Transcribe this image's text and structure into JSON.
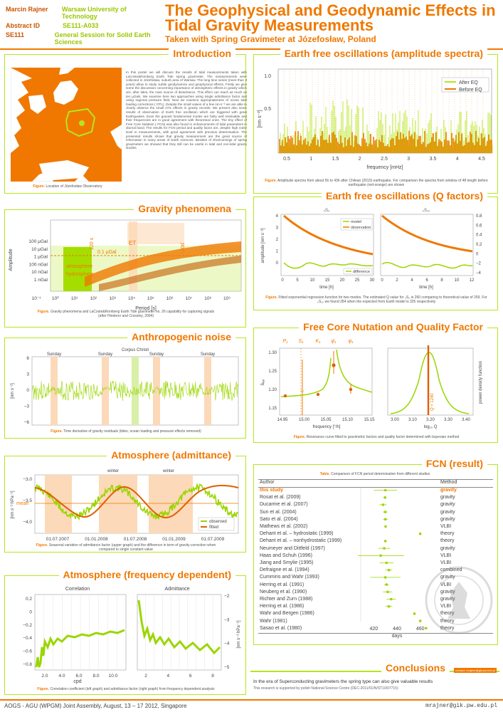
{
  "header": {
    "author_label": "Marcin Rajner",
    "affiliation": "Warsaw University of Technology",
    "abstract_label": "Abstract ID",
    "abstract_id": "SE111-A033",
    "session_code": "SE111",
    "session_name": "General Session for Solid Earth Sciences",
    "title": "The Geophysical and Geodynamic Effects in Tidal Gravity Measurements",
    "subtitle": "Taken with Spring Gravimeter at Józefosław, Poland"
  },
  "intro": {
    "title": "Introduction",
    "text": "In this poster we will discuss the results of tidal measurements taken with LaCoste&Romberg Earth Tide spring gravimeter. The measurements were collected in Józefosław, suburb area of Warsaw. The long time series (more than 3 years) allow to study subtle geodynamics and geophysical effects. Firstly we give some the discussion concerning importance of atmospheric effects in gravity which are, after tides, the main source of disturbance. This effect can reach as much as ten µGals. We examine here two approaches using single admittance factor and using regional pressure field. Next we examine appropriateness of ocean tidal loading corrections ( OTL). Despite the small values of a few nm·s⁻² we are able to clearly observe the small OTL effects in gravity records. We present also some results of observation of Earth free oscillation which are triggered with great Earthquakes. Even the gravest fundamental modes are fairly well resolvable and their frequencies are in good agreement with theoretical ones. The tiny effect of Free Core Nutation ( FCN) was also found in enhancements of tidal parameters in diurnal band. The results for FCN period and quality factor are, despite high noise level in measurements, with good agreement with previous determination. The presented results shows that gravity measurement are the great source of information in many areas of Earth sciences. Besides of shortcomings of spring gravimeters we showed that they still can be useful in tidal and non-tidal gravity studies.",
    "caption_label": "Figure.",
    "caption": "Location of Józefosław Observatory"
  },
  "spectra": {
    "title": "Earth free oscillations (amplitude spectra)",
    "ylabel": "[nm s⁻²]",
    "xlabel": "frequency [mHz]",
    "legend": [
      "After EQ",
      "Before EQ"
    ],
    "yticks": [
      "1.0",
      "0.5"
    ],
    "xticks": [
      "0.5",
      "1",
      "1.5",
      "2",
      "2.5",
      "3",
      "3.5",
      "4",
      "4.5"
    ],
    "caption_label": "Figure.",
    "caption": "Amplitude spectra from about 5h to 43h after Chilean (2010) earthquake. For comparison the spectra from window of 48 length before earthquake (red-orange) are shown"
  },
  "gravity": {
    "title": "Gravity phenomena",
    "ylabel": "Amplitude",
    "xlabel": "Period [s]",
    "yticks": [
      "100 µGal",
      "10 µGal",
      "1 µGal",
      "100 nGal",
      "10 nGal",
      "1 nGal"
    ],
    "xticks": [
      "10⁻¹",
      "10⁰",
      "10¹",
      "10²",
      "10³",
      "10⁴",
      "10⁵",
      "10⁶",
      "10⁷",
      "10⁸",
      "10⁹"
    ],
    "labels": {
      "resolution": "0.1 µGal",
      "et": "ET",
      "s120": "120 s",
      "d20": "~20d",
      "atmo": "atmosphere",
      "hydro": "hydrosphere"
    },
    "caption_label": "Figure.",
    "caption": "Gravity phenomena and LaCoste&Romberg Earth Tide gravimeter no. 26 capability for capturing signals (after Hinderer and Crossley, 2004)"
  },
  "qfactor": {
    "title": "Earth free oscillations (Q factors)",
    "left_title": "₀S₀",
    "right_title": "₀S₁₀",
    "ylabel": "amplitude [nm s⁻²]",
    "xlabel": "time [h]",
    "left_yticks": [
      "4",
      "3",
      "2",
      "1",
      "0"
    ],
    "right_yticks": [
      "0.8",
      "0.6",
      "0.4",
      "0.2",
      "0",
      "−2",
      "−4"
    ],
    "xticks_left": [
      "0",
      "5",
      "10",
      "15",
      "20",
      "25",
      "30"
    ],
    "xticks_right": [
      "0",
      "2",
      "4",
      "6",
      "8",
      "10",
      "12"
    ],
    "legend_model": "model",
    "legend_obs": "observation",
    "legend_diff": "difference",
    "caption_label": "Figure.",
    "caption": "Fitted exponential regression function for two modes. The estimated Q value for ₀S₀ is 260 comparing to theoretical value of 259. For ₀S₁₀ we found 284 when the expected from Earth model is 325 respectively"
  },
  "noise": {
    "title": "Anthropogenic noise",
    "ylabel": "[nm s⁻²]",
    "yticks": [
      "6",
      "3",
      "0",
      "−3",
      "−6"
    ],
    "days": [
      "Sunday",
      "Sunday",
      "Corpus Christi",
      "Sunday",
      "Sunday"
    ],
    "caption_label": "Figure.",
    "caption": "Time derivative of gravity residuals (tides, ocean loading and pressure effects removed)"
  },
  "fcn_q": {
    "title": "Free Core Nutation and Quality Factor",
    "wave_labels": [
      "P₁",
      "S₁",
      "K₁",
      "ψ₁",
      "φ₁"
    ],
    "ylabel": "δₑₐₗ",
    "yticks": [
      "1.30",
      "1.25",
      "1.20",
      "1.15"
    ],
    "xticks": [
      "14.95",
      "15.00",
      "15.05",
      "15.10",
      "15.15"
    ],
    "xlabel": "frequency [°/h]",
    "right_xticks": [
      "3.00",
      "3.10",
      "3.20",
      "3.30",
      "3.40"
    ],
    "right_xlabel": "log₁₀ Q",
    "right_ylabel": "power density function",
    "q_label": "Q ≈ 1240",
    "caption_label": "Figure.",
    "caption": "Resonance curve fitted to gravimetric factors and quality factor determined with bayesian method"
  },
  "atmo_adm": {
    "title": "Atmosphere (admittance)",
    "ylabel": "[nm s⁻² hPa⁻¹]",
    "yticks": [
      "−3.0",
      "−3.5",
      "−4.0"
    ],
    "mean_label": "mean",
    "season": [
      "winter",
      "winter"
    ],
    "xticks": [
      "01.07.2007",
      "01.01.2008",
      "01.07.2008",
      "01.01.2009",
      "01.07.2009"
    ],
    "legend": [
      "observed",
      "fitted"
    ],
    "caption_label": "Figure.",
    "caption": "Seasonal variation of admittance factor (upper graph) and the difference in term of gravity correction when compared to single constant value"
  },
  "fcn_result": {
    "title": "FCN (result)",
    "table_label": "Table.",
    "table_caption": "Comparison of FCN period determination from different studies",
    "head_author": "Author",
    "head_method": "Method",
    "rows": [
      {
        "author": "this study",
        "method": "gravity",
        "v": 430,
        "e": 10
      },
      {
        "author": "Rosat et al. (2009)",
        "method": "gravity",
        "v": 429.7,
        "e": 1.4
      },
      {
        "author": "Ducarme et al. (2007)",
        "method": "gravity",
        "v": 428,
        "e": 3
      },
      {
        "author": "Sun et al. (2004)",
        "method": "gravity",
        "v": 429.9,
        "e": 2
      },
      {
        "author": "Sato et al. (2004)",
        "method": "gravity",
        "v": 430,
        "e": 2
      },
      {
        "author": "Mathews et al. (2002)",
        "method": "VLBI",
        "v": 430.2,
        "e": 0.3
      },
      {
        "author": "Dehant et al. – hydrostatic (1999)",
        "method": "theory",
        "v": 460,
        "e": 0
      },
      {
        "author": "Dehant et al. – nonhydrostatic (1999)",
        "method": "theory",
        "v": 430,
        "e": 0
      },
      {
        "author": "Neumeyer and Dittfeld (1997)",
        "method": "gravity",
        "v": 429,
        "e": 5
      },
      {
        "author": "Haas and Schuh (1996)",
        "method": "VLBI",
        "v": 426,
        "e": 20
      },
      {
        "author": "Jiang and Smylie (1995)",
        "method": "VLBI",
        "v": 431,
        "e": 6
      },
      {
        "author": "Defraigne et al. (1994)",
        "method": "combined",
        "v": 433,
        "e": 3
      },
      {
        "author": "Cummins and Wahr (1993)",
        "method": "gravity",
        "v": 430,
        "e": 13
      },
      {
        "author": "Herring et al. (1991)",
        "method": "VLBI",
        "v": 431,
        "e": 2
      },
      {
        "author": "Neuberg et al. (1990)",
        "method": "gravity",
        "v": 432,
        "e": 4
      },
      {
        "author": "Richter and Zurn (1988)",
        "method": "gravity",
        "v": 435,
        "e": 4
      },
      {
        "author": "Herring et al. (1986)",
        "method": "VLBI",
        "v": 433,
        "e": 3
      },
      {
        "author": "Wahr and Bergen (1986)",
        "method": "theory",
        "v": 455,
        "e": 0
      },
      {
        "author": "Wahr (1981)",
        "method": "theory",
        "v": 460,
        "e": 0
      },
      {
        "author": "Sasao et al. (1980)",
        "method": "theory",
        "v": 465,
        "e": 0
      }
    ],
    "xticks": [
      "420",
      "440",
      "460"
    ],
    "xlabel": "days"
  },
  "atmo_freq": {
    "title": "Atmosphere (frequency dependent)",
    "left_title": "Correlation",
    "right_title": "Admittance",
    "left_yticks": [
      "0.2",
      "0",
      "−0.2",
      "−0.4",
      "−0.6",
      "−0.8"
    ],
    "right_yticks": [
      "−2",
      "−3",
      "−4",
      "−5"
    ],
    "left_xticks": [
      "2.0",
      "4.0",
      "6.0",
      "8.0",
      "10.0"
    ],
    "right_xticks": [
      "2",
      "4",
      "6",
      "8"
    ],
    "xlabel": "cpd",
    "right_ylabel": "[nm s⁻² hPa⁻¹]",
    "caption_label": "Figure.",
    "caption": "Correlation coefficient (left graph) and admittance factor (right graph) from frequency dependent analysis"
  },
  "conclusions": {
    "title": "Conclusions",
    "badge": "contact: mrajner@gik.pw.edu.pl",
    "line1": "In the era of Superconducting gravimeters the spring type can also give valuable results",
    "line2": "This research is supported by polish National Science Centre (DEC-2011/01/N/ST10/07715)"
  },
  "footer": {
    "left": "AOGS - AGU (WPGM) Joint Assembly, August, 13 – 17 2012, Singapore",
    "right": "mrajner@gik.pw.edu.pl"
  },
  "colors": {
    "orange": "#f07800",
    "green": "#b5e61d",
    "lime": "#9ad600",
    "peach": "#fcd9b8"
  }
}
